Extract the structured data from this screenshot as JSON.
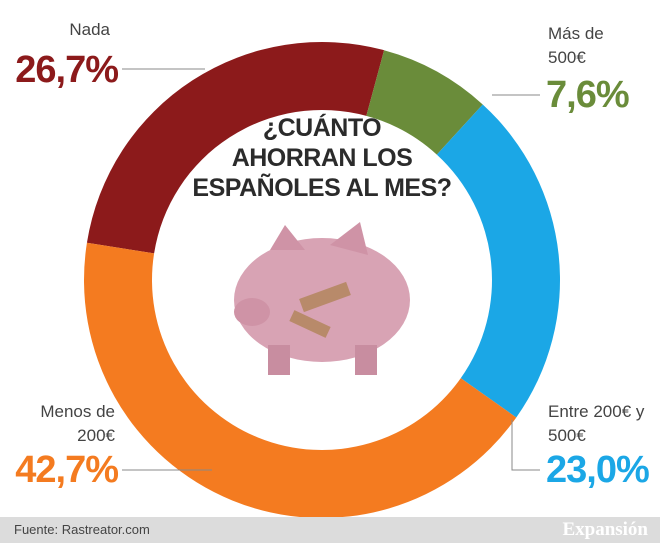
{
  "chart_data": {
    "type": "donut",
    "title": [
      "¿CUÁNTO",
      "AHORRAN LOS",
      "ESPAÑOLES AL MES?"
    ],
    "categories": [
      "Nada",
      "Más de 500€",
      "Entre 200€ y 500€",
      "Menos de 200€"
    ],
    "values": [
      26.7,
      7.6,
      23.0,
      42.7
    ],
    "value_labels": [
      "26,7%",
      "7,6%",
      "23,0%",
      "42,7%"
    ],
    "colors": [
      "#8c1a1b",
      "#6a8c3a",
      "#1ba7e6",
      "#f47b20"
    ],
    "source": "Fuente: Rastreator.com",
    "brand": "Expansión"
  }
}
